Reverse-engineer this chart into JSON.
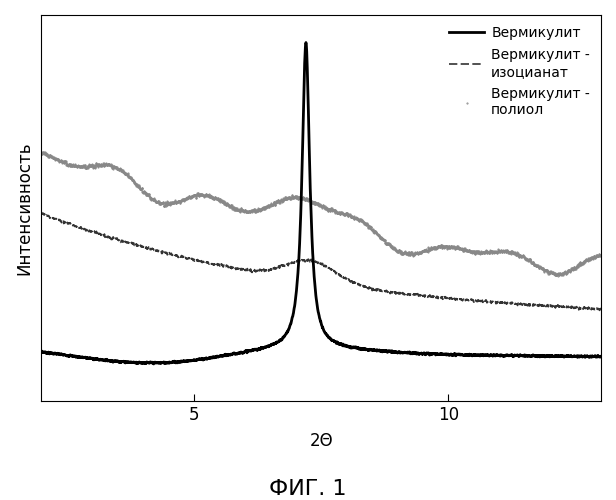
{
  "title": "ФИГ. 1",
  "xlabel": "2Θ",
  "ylabel": "Интенсивность",
  "xlim": [
    2,
    13
  ],
  "xticks": [
    5,
    10
  ],
  "legend": [
    "Вермикулит",
    "Вермикулит -\nизоцианат",
    "Вермикулит -\nполиол"
  ],
  "line1_color": "#000000",
  "line2_color": "#333333",
  "line3_color": "#888888",
  "background_color": "#ffffff",
  "title_fontsize": 16,
  "label_fontsize": 12,
  "legend_fontsize": 10
}
